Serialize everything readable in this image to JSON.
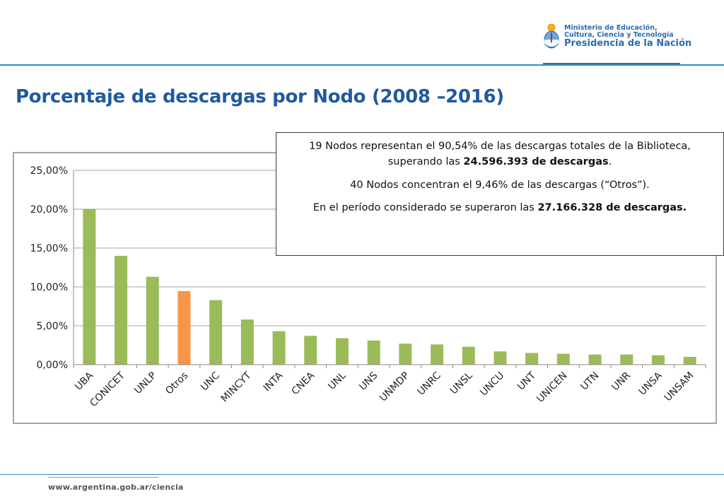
{
  "header": {
    "logo_line1": "Ministerio de Educación,",
    "logo_line2": "Cultura, Ciencia y Tecnología",
    "logo_line3": "Presidencia de la Nación",
    "emblem_icon": "argentina-coat-of-arms-icon"
  },
  "page_title": "Porcentaje de descargas por Nodo (2008 –2016)",
  "callout": {
    "p1_before": "19 Nodos representan el 90,54% de las descargas totales de la Biblioteca, superando las ",
    "p1_bold": "24.596.393 de descargas",
    "p1_after": ".",
    "p2": "40 Nodos concentran el 9,46% de las descargas (“Otros”).",
    "p3_before": "En el período considerado se superaron las ",
    "p3_bold": "27.166.328 de descargas."
  },
  "chart_data": {
    "type": "bar",
    "categories": [
      "UBA",
      "CONICET",
      "UNLP",
      "Otros",
      "UNC",
      "MINCYT",
      "INTA",
      "CNEA",
      "UNL",
      "UNS",
      "UNMDP",
      "UNRC",
      "UNSL",
      "UNCU",
      "UNT",
      "UNICEN",
      "UTN",
      "UNR",
      "UNSA",
      "UNSAM"
    ],
    "values": [
      20.0,
      14.0,
      11.3,
      9.46,
      8.3,
      5.8,
      4.3,
      3.7,
      3.4,
      3.1,
      2.7,
      2.6,
      2.3,
      1.7,
      1.5,
      1.4,
      1.3,
      1.3,
      1.2,
      1.0
    ],
    "highlight_category": "Otros",
    "ylim": [
      0,
      25
    ],
    "yticks": [
      "0,00%",
      "5,00%",
      "10,00%",
      "15,00%",
      "20,00%",
      "25,00%"
    ],
    "grid": true,
    "colors": {
      "bar": "#9bbb59",
      "highlight": "#f79646",
      "grid": "#a6a6a6",
      "axis": "#888888"
    }
  },
  "footer": {
    "url": "www.argentina.gob.ar/ciencia"
  }
}
